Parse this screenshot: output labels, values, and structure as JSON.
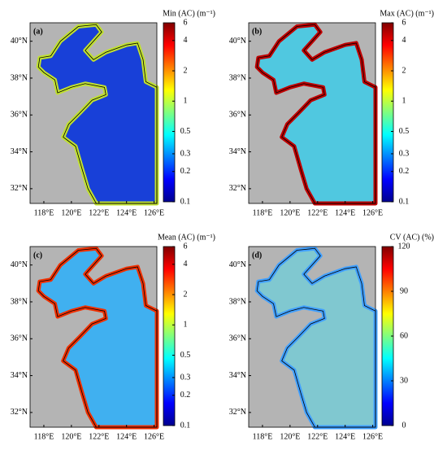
{
  "axes": {
    "xlim": [
      117,
      126.2
    ],
    "ylim": [
      31.2,
      41
    ],
    "xticks": [
      {
        "value": 118,
        "label": "118°E"
      },
      {
        "value": 120,
        "label": "120°E"
      },
      {
        "value": 122,
        "label": "122°E"
      },
      {
        "value": 124,
        "label": "124°E"
      },
      {
        "value": 126,
        "label": "126°E"
      }
    ],
    "yticks": [
      {
        "value": 32,
        "label": "32°N"
      },
      {
        "value": 34,
        "label": "34°N"
      },
      {
        "value": 36,
        "label": "36°N"
      },
      {
        "value": 38,
        "label": "38°N"
      },
      {
        "value": 40,
        "label": "40°N"
      }
    ]
  },
  "panels": [
    {
      "label": "(a)",
      "title": "Min (AC) (m⁻¹)",
      "colorbar": {
        "scale": "log",
        "lim": [
          0.1,
          6
        ],
        "ticks": [
          0.1,
          0.2,
          0.3,
          0.5,
          1,
          2,
          4,
          6
        ]
      }
    },
    {
      "label": "(b)",
      "title": "Max (AC) (m⁻¹)",
      "colorbar": {
        "scale": "log",
        "lim": [
          0.1,
          6
        ],
        "ticks": [
          0.1,
          0.2,
          0.3,
          0.5,
          1,
          2,
          4,
          6
        ]
      }
    },
    {
      "label": "(c)",
      "title": "Mean (AC) (m⁻¹)",
      "colorbar": {
        "scale": "log",
        "lim": [
          0.1,
          6
        ],
        "ticks": [
          0.1,
          0.2,
          0.3,
          0.5,
          1,
          2,
          4,
          6
        ]
      }
    },
    {
      "label": "(d)",
      "title": "CV (AC) (%)",
      "colorbar": {
        "scale": "linear",
        "lim": [
          0,
          120
        ],
        "ticks": [
          0,
          30,
          60,
          90,
          120
        ]
      }
    }
  ]
}
